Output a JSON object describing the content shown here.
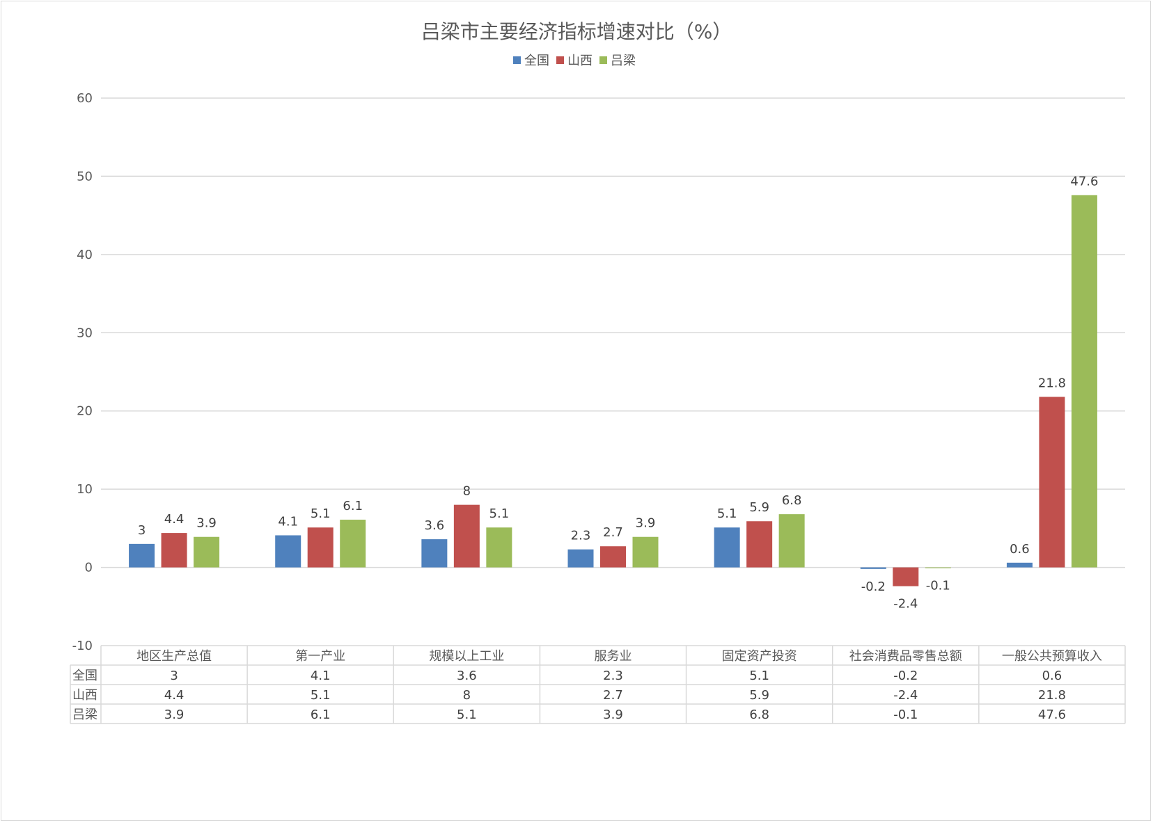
{
  "chart_data": {
    "type": "bar",
    "title": "吕梁市主要经济指标增速对比（%）",
    "categories": [
      "地区生产总值",
      "第一产业",
      "规模以上工业",
      "服务业",
      "固定资产投资",
      "社会消费品零售总额",
      "一般公共预算收入"
    ],
    "series": [
      {
        "name": "全国",
        "color": "#4f81bd",
        "values": [
          3,
          4.1,
          3.6,
          2.3,
          5.1,
          -0.2,
          0.6
        ]
      },
      {
        "name": "山西",
        "color": "#c0504d",
        "values": [
          4.4,
          5.1,
          8,
          2.7,
          5.9,
          -2.4,
          21.8
        ]
      },
      {
        "name": "吕梁",
        "color": "#9bbb59",
        "values": [
          3.9,
          6.1,
          5.1,
          3.9,
          6.8,
          -0.1,
          47.6
        ]
      }
    ],
    "ylim": [
      -10,
      60
    ],
    "yticks": [
      -10,
      0,
      10,
      20,
      30,
      40,
      50,
      60
    ],
    "grid": true,
    "legend_position": "top",
    "data_table": true
  }
}
